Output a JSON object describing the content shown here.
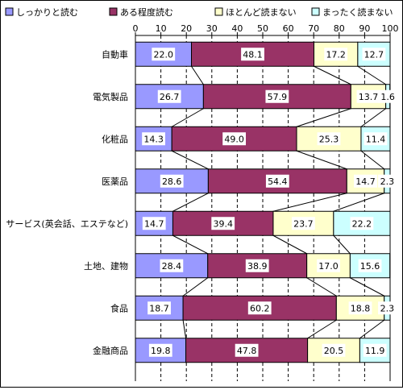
{
  "chart_data": {
    "type": "bar",
    "stacked": true,
    "orientation": "horizontal",
    "title": "",
    "xlabel": "",
    "ylabel": "",
    "xlim": [
      0,
      100
    ],
    "ticks": [
      "0",
      "10",
      "20",
      "30",
      "40",
      "50",
      "60",
      "70",
      "80",
      "90",
      "100"
    ],
    "grid": true,
    "legend_position": "top",
    "categories": [
      "自動車",
      "電気製品",
      "化粧品",
      "医薬品",
      "サービス(英会話、エステなど)",
      "土地、建物",
      "食品",
      "金融商品"
    ],
    "series": [
      {
        "name": "しっかりと読む",
        "color": "#9999ff",
        "values": [
          22.0,
          26.7,
          14.3,
          28.6,
          14.7,
          28.4,
          18.7,
          19.8
        ],
        "labels": [
          "22.0",
          "26.7",
          "14.3",
          "28.6",
          "14.7",
          "28.4",
          "18.7",
          "19.8"
        ]
      },
      {
        "name": "ある程度読む",
        "color": "#993366",
        "values": [
          48.1,
          57.9,
          49.0,
          54.4,
          39.4,
          38.9,
          60.2,
          47.8
        ],
        "labels": [
          "48.1",
          "57.9",
          "49.0",
          "54.4",
          "39.4",
          "38.9",
          "60.2",
          "47.8"
        ]
      },
      {
        "name": "ほとんど読まない",
        "color": "#ffffcc",
        "values": [
          17.2,
          13.7,
          25.3,
          14.7,
          23.7,
          17.0,
          18.8,
          20.5
        ],
        "labels": [
          "17.2",
          "13.7",
          "25.3",
          "14.7",
          "23.7",
          "17.0",
          "18.8",
          "20.5"
        ]
      },
      {
        "name": "まったく読まない",
        "color": "#ccffff",
        "values": [
          12.7,
          1.6,
          11.4,
          2.3,
          22.2,
          15.6,
          2.3,
          11.9
        ],
        "labels": [
          "12.7",
          "1.6",
          "11.4",
          "2.3",
          "22.2",
          "15.6",
          "2.3",
          "11.9"
        ]
      }
    ]
  }
}
